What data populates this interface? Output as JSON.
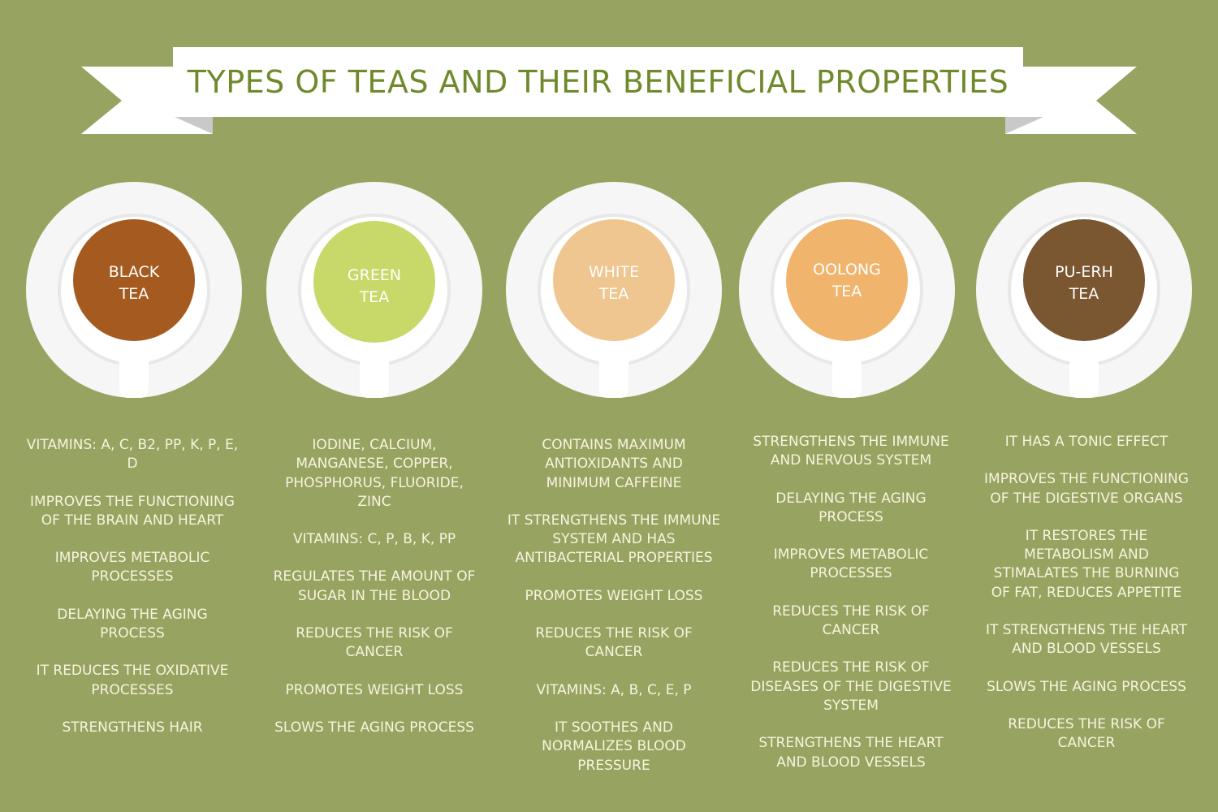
{
  "title": "TYPES OF TEAS AND THEIR BENEFICIAL PROPERTIES",
  "colors": {
    "background": "#97a360",
    "title_text": "#6f8a2c",
    "banner": "#ffffff",
    "banner_shadow": "#d9d9d9",
    "saucer": "#f7f7f7",
    "cup_rim": "#ffffff"
  },
  "teas": [
    {
      "name_line1": "BLACK",
      "name_line2": "TEA",
      "color": "#a55b1f",
      "benefits": [
        "VITAMINS: A, C, B2, PP, K, P, E, D",
        "IMPROVES THE FUNCTIONING OF THE BRAIN AND HEART",
        "IMPROVES METABOLIC PROCESSES",
        "DELAYING THE AGING PROCESS",
        "IT REDUCES THE OXIDATIVE PROCESSES",
        "STRENGTHENS HAIR"
      ]
    },
    {
      "name_line1": "GREEN",
      "name_line2": "TEA",
      "color": "#c8d869",
      "benefits": [
        "IODINE, CALCIUM, MANGANESE, COPPER, PHOSPHORUS, FLUORIDE, ZINC",
        "VITAMINS: C, P, B, K, PP",
        "REGULATES THE AMOUNT OF SUGAR IN THE BLOOD",
        "REDUCES THE RISK OF CANCER",
        "PROMOTES WEIGHT LOSS",
        "SLOWS THE AGING PROCESS"
      ]
    },
    {
      "name_line1": "WHITE",
      "name_line2": "TEA",
      "color": "#f0c690",
      "benefits": [
        "CONTAINS MAXIMUM ANTIOXIDANTS AND MINIMUM  CAFFEINE",
        "IT STRENGTHENS THE IMMUNE SYSTEM AND HAS ANTIBACTERIAL PROPERTIES",
        "PROMOTES WEIGHT LOSS",
        "REDUCES THE RISK OF CANCER",
        "VITAMINS: A, B, C, E, P",
        "IT SOOTHES AND NORMALIZES BLOOD PRESSURE"
      ]
    },
    {
      "name_line1": "OOLONG",
      "name_line2": "TEA",
      "color": "#f0b46c",
      "benefits": [
        "STRENGTHENS THE IMMUNE AND NERVOUS SYSTEM",
        "DELAYING THE AGING PROCESS",
        "IMPROVES METABOLIC PROCESSES",
        "REDUCES THE RISK OF CANCER",
        "REDUCES THE RISK OF DISEASES OF THE DIGESTIVE SYSTEM",
        "STRENGTHENS THE HEART AND BLOOD VESSELS"
      ]
    },
    {
      "name_line1": "PU-ERH",
      "name_line2": "TEA",
      "color": "#7a5631",
      "benefits": [
        "IT HAS A TONIC EFFECT",
        "IMPROVES THE FUNCTIONING OF THE DIGESTIVE ORGANS",
        "IT RESTORES THE METABOLISM AND STIMALATES THE BURNING OF FAT, REDUCES APPETITE",
        "IT STRENGTHENS THE HEART AND BLOOD VESSELS",
        "SLOWS THE AGING PROCESS",
        "REDUCES THE RISK OF CANCER"
      ]
    }
  ]
}
